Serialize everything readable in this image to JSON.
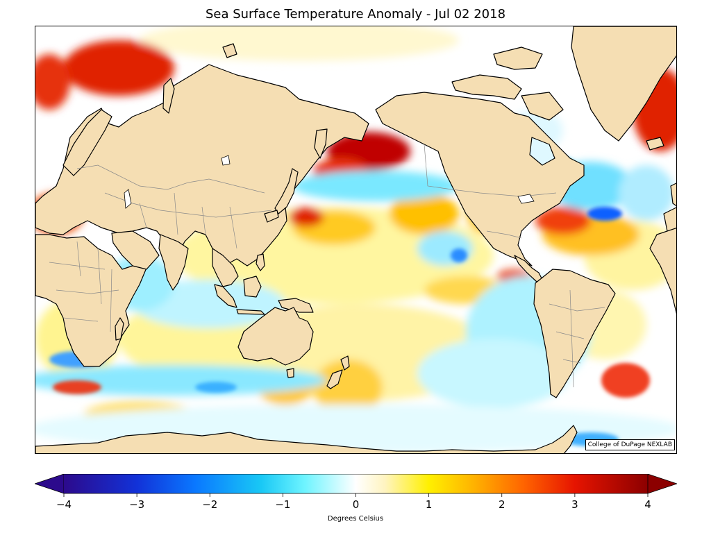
{
  "title": "Sea Surface Temperature Anomaly - Jul 02 2018",
  "credit": "College of DuPage NEXLAB",
  "colorbar": {
    "label": "Degrees Celsius",
    "ticks": [
      "−4",
      "−3",
      "−2",
      "−1",
      "0",
      "1",
      "2",
      "3",
      "4"
    ],
    "tick_values": [
      -4,
      -3,
      -2,
      -1,
      0,
      1,
      2,
      3,
      4
    ],
    "range": [
      -4,
      4
    ],
    "stops": [
      {
        "v": -4,
        "color": "#2c0a8c"
      },
      {
        "v": -3,
        "color": "#1232d8"
      },
      {
        "v": -2.2,
        "color": "#0a78ff"
      },
      {
        "v": -1.3,
        "color": "#19c8f5"
      },
      {
        "v": -0.7,
        "color": "#6ef4ff"
      },
      {
        "v": 0,
        "color": "#ffffff"
      },
      {
        "v": 0.4,
        "color": "#fff4c0"
      },
      {
        "v": 1,
        "color": "#fff000"
      },
      {
        "v": 1.6,
        "color": "#ffb400"
      },
      {
        "v": 2.3,
        "color": "#ff6400"
      },
      {
        "v": 3,
        "color": "#e61400"
      },
      {
        "v": 4,
        "color": "#8c0000"
      }
    ]
  },
  "colors": {
    "land": "#f5deb3",
    "coast": "#000000",
    "border": "#8a8a8a"
  }
}
